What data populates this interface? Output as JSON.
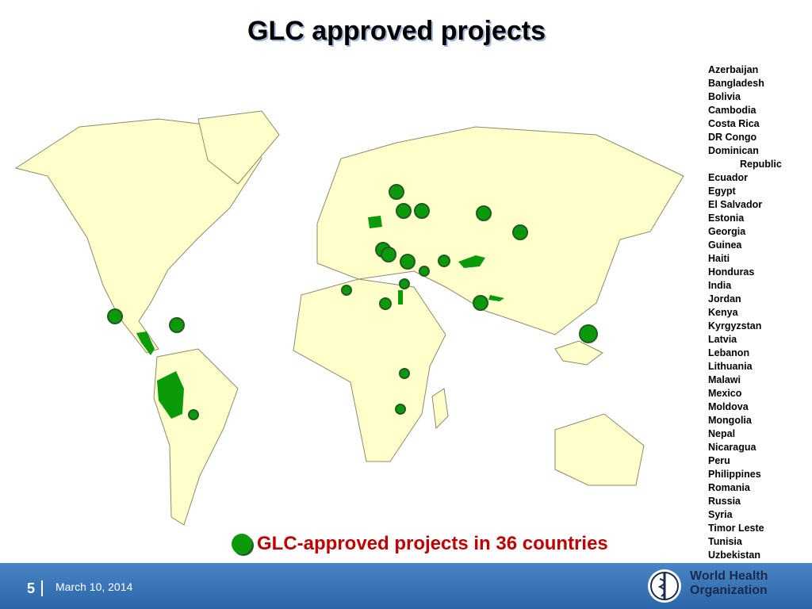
{
  "header": {
    "title": "GLC approved projects"
  },
  "countries": [
    "Azerbaijan",
    "Bangladesh",
    "Bolivia",
    "Cambodia",
    "Costa Rica",
    "DR Congo",
    "Dominican Republic",
    "Ecuador",
    "Egypt",
    "El Salvador",
    "Estonia",
    "Georgia",
    "Guinea",
    "Haiti",
    "Honduras",
    "India",
    "Jordan",
    "Kenya",
    "Kyrgyzstan",
    "Latvia",
    "Lebanon",
    "Lithuania",
    "Malawi",
    "Mexico",
    "Moldova",
    "Mongolia",
    "Nepal",
    "Nicaragua",
    "Peru",
    "Philippines",
    "Romania",
    "Russia",
    "Syria",
    "Timor Leste",
    "Tunisia",
    "Uzbekistan"
  ],
  "legend": "GLC-approved projects in 36 countries",
  "footer": {
    "page": "5",
    "date": "March 10, 2014",
    "organization": [
      "World Health",
      "Organization"
    ]
  }
}
